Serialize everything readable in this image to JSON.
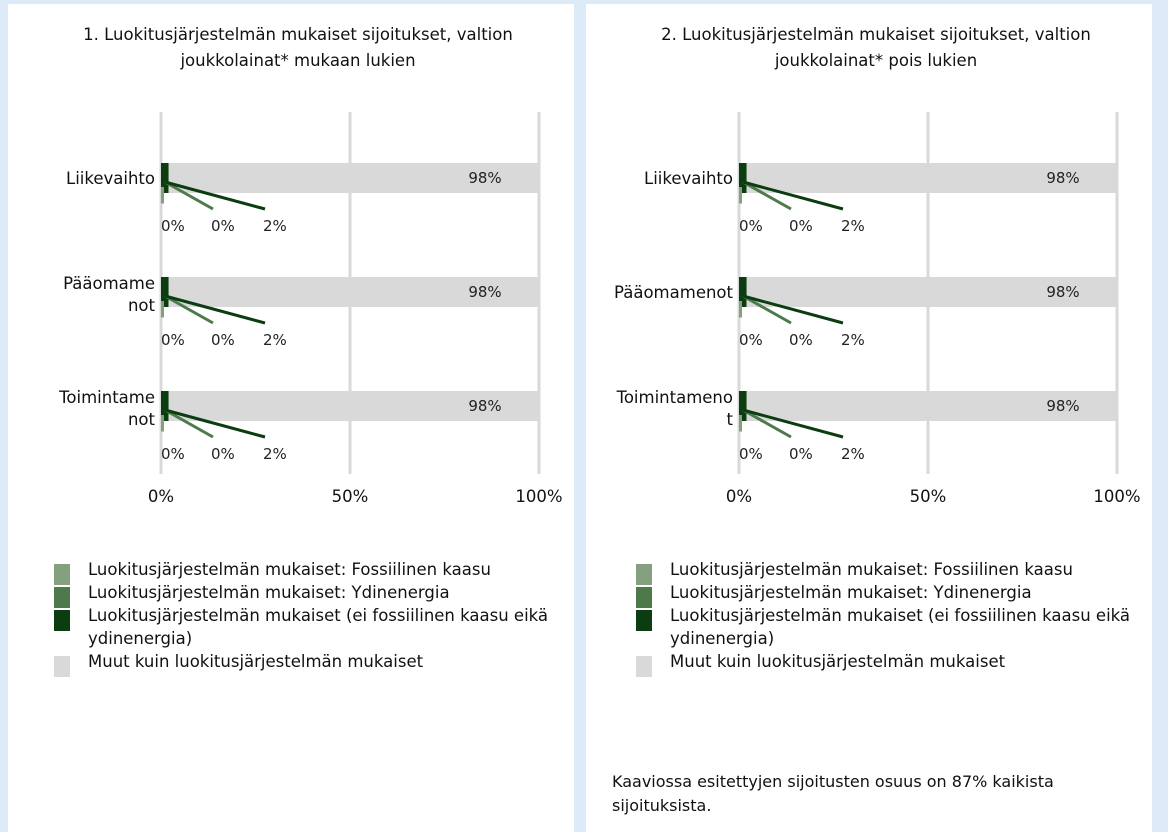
{
  "colors": {
    "fossil_gas": "#85a07f",
    "nuclear": "#4e7a4b",
    "aligned_other": "#0b3d10",
    "non_aligned": "#d9d9d9",
    "gridline": "#d9d9d9"
  },
  "legend": [
    {
      "label": "Luokitusjärjestelmän mukaiset: Fossiilinen kaasu",
      "color_key": "fossil_gas"
    },
    {
      "label": "Luokitusjärjestelmän mukaiset: Ydinenergia",
      "color_key": "nuclear"
    },
    {
      "label": "Luokitusjärjestelmän mukaiset (ei fossiilinen kaasu eikä ydinenergia)",
      "color_key": "aligned_other"
    },
    {
      "label": "Muut kuin luokitusjärjestelmän mukaiset",
      "color_key": "non_aligned"
    }
  ],
  "footnote": "Kaaviossa esitettyjen sijoitusten osuus on 87% kaikista sijoituksista.",
  "chart_data": [
    {
      "type": "bar",
      "orientation": "horizontal",
      "stacked": true,
      "title": "1. Luokitusjärjestelmän mukaiset sijoitukset, valtion joukkolainat* mukaan lukien",
      "categories": [
        "Liikevaihto",
        "Pääomamenot",
        "Toimintamenot"
      ],
      "category_label_lines": [
        [
          "Liikevaihto"
        ],
        [
          "Pääomame",
          "not"
        ],
        [
          "Toimintame",
          "not"
        ]
      ],
      "series": [
        {
          "name": "Luokitusjärjestelmän mukaiset: Fossiilinen kaasu",
          "color_key": "fossil_gas",
          "values": [
            0,
            0,
            0
          ],
          "labels": [
            "0%",
            "0%",
            "0%"
          ]
        },
        {
          "name": "Luokitusjärjestelmän mukaiset: Ydinenergia",
          "color_key": "nuclear",
          "values": [
            0,
            0,
            0
          ],
          "labels": [
            "0%",
            "0%",
            "0%"
          ]
        },
        {
          "name": "Luokitusjärjestelmän mukaiset (ei fossiilinen kaasu eikä ydinenergia)",
          "color_key": "aligned_other",
          "values": [
            2,
            2,
            2
          ],
          "labels": [
            "2%",
            "2%",
            "2%"
          ]
        },
        {
          "name": "Muut kuin luokitusjärjestelmän mukaiset",
          "color_key": "non_aligned",
          "values": [
            98,
            98,
            98
          ],
          "labels": [
            "98%",
            "98%",
            "98%"
          ]
        }
      ],
      "xlim": [
        0,
        100
      ],
      "x_ticks": [
        0,
        50,
        100
      ],
      "x_tick_labels": [
        "0%",
        "50%",
        "100%"
      ],
      "grid": true
    },
    {
      "type": "bar",
      "orientation": "horizontal",
      "stacked": true,
      "title": "2. Luokitusjärjestelmän mukaiset sijoitukset, valtion joukkolainat* pois lukien",
      "categories": [
        "Liikevaihto",
        "Pääomamenot",
        "Toimintamenot"
      ],
      "category_label_lines": [
        [
          "Liikevaihto"
        ],
        [
          "Pääomamenot"
        ],
        [
          "Toimintameno",
          "t"
        ]
      ],
      "series": [
        {
          "name": "Luokitusjärjestelmän mukaiset: Fossiilinen kaasu",
          "color_key": "fossil_gas",
          "values": [
            0,
            0,
            0
          ],
          "labels": [
            "0%",
            "0%",
            "0%"
          ]
        },
        {
          "name": "Luokitusjärjestelmän mukaiset: Ydinenergia",
          "color_key": "nuclear",
          "values": [
            0,
            0,
            0
          ],
          "labels": [
            "0%",
            "0%",
            "0%"
          ]
        },
        {
          "name": "Luokitusjärjestelmän mukaiset (ei fossiilinen kaasu eikä ydinenergia)",
          "color_key": "aligned_other",
          "values": [
            2,
            2,
            2
          ],
          "labels": [
            "2%",
            "2%",
            "2%"
          ]
        },
        {
          "name": "Muut kuin luokitusjärjestelmän mukaiset",
          "color_key": "non_aligned",
          "values": [
            98,
            98,
            98
          ],
          "labels": [
            "98%",
            "98%",
            "98%"
          ]
        }
      ],
      "xlim": [
        0,
        100
      ],
      "x_ticks": [
        0,
        50,
        100
      ],
      "x_tick_labels": [
        "0%",
        "50%",
        "100%"
      ],
      "grid": true
    }
  ]
}
